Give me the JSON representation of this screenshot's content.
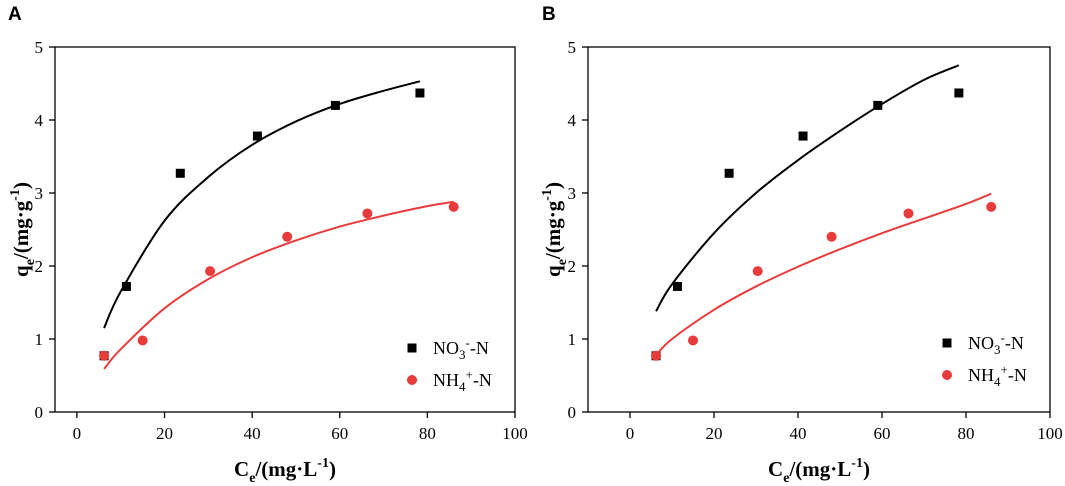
{
  "chart_data": [
    {
      "type": "scatter",
      "panel": "A",
      "title": "",
      "xlabel": "Ce/(mg·L-1)",
      "ylabel": "qe/(mg·g-1)",
      "xlim": [
        -5,
        100
      ],
      "ylim": [
        0,
        5
      ],
      "xticks": [
        0,
        20,
        40,
        60,
        80,
        100
      ],
      "yticks": [
        0,
        1,
        2,
        3,
        4,
        5
      ],
      "legend_position": "bottom-right",
      "series": [
        {
          "name": "NO3--N",
          "marker": "square",
          "color": "#000000",
          "points": [
            [
              6.2,
              0.77
            ],
            [
              11.3,
              1.72
            ],
            [
              23.6,
              3.27
            ],
            [
              41.2,
              3.78
            ],
            [
              59.0,
              4.2
            ],
            [
              78.3,
              4.37
            ]
          ],
          "fit_points": [
            [
              6.2,
              1.15
            ],
            [
              10,
              1.65
            ],
            [
              20,
              2.62
            ],
            [
              30,
              3.22
            ],
            [
              40,
              3.66
            ],
            [
              50,
              3.98
            ],
            [
              60,
              4.22
            ],
            [
              70,
              4.4
            ],
            [
              78.3,
              4.53
            ]
          ]
        },
        {
          "name": "NH4+-N",
          "marker": "circle",
          "color": "#e83c3c",
          "points": [
            [
              6.2,
              0.77
            ],
            [
              15.0,
              0.98
            ],
            [
              30.4,
              1.93
            ],
            [
              48.0,
              2.4
            ],
            [
              66.3,
              2.72
            ],
            [
              86.0,
              2.81
            ]
          ],
          "fit_points": [
            [
              6.2,
              0.59
            ],
            [
              10,
              0.86
            ],
            [
              20,
              1.42
            ],
            [
              30,
              1.82
            ],
            [
              40,
              2.12
            ],
            [
              50,
              2.35
            ],
            [
              60,
              2.54
            ],
            [
              70,
              2.69
            ],
            [
              80,
              2.82
            ],
            [
              86,
              2.88
            ]
          ]
        }
      ]
    },
    {
      "type": "scatter",
      "panel": "B",
      "title": "",
      "xlabel": "Ce/(mg·L-1)",
      "ylabel": "qe/(mg·g-1)",
      "xlim": [
        -10,
        100
      ],
      "ylim": [
        0,
        5
      ],
      "xticks": [
        0,
        20,
        40,
        60,
        80,
        100
      ],
      "yticks": [
        0,
        1,
        2,
        3,
        4,
        5
      ],
      "legend_position": "bottom-right",
      "series": [
        {
          "name": "NO3--N",
          "marker": "square",
          "color": "#000000",
          "points": [
            [
              6.2,
              0.77
            ],
            [
              11.3,
              1.72
            ],
            [
              23.6,
              3.27
            ],
            [
              41.2,
              3.78
            ],
            [
              59.0,
              4.2
            ],
            [
              78.3,
              4.37
            ]
          ],
          "fit_points": [
            [
              6.2,
              1.38
            ],
            [
              10,
              1.75
            ],
            [
              20,
              2.45
            ],
            [
              30,
              3.0
            ],
            [
              40,
              3.45
            ],
            [
              50,
              3.85
            ],
            [
              60,
              4.22
            ],
            [
              70,
              4.55
            ],
            [
              78.3,
              4.75
            ]
          ]
        },
        {
          "name": "NH4+-N",
          "marker": "circle",
          "color": "#e83c3c",
          "points": [
            [
              6.2,
              0.77
            ],
            [
              15.0,
              0.98
            ],
            [
              30.4,
              1.93
            ],
            [
              48.0,
              2.4
            ],
            [
              66.3,
              2.72
            ],
            [
              86.0,
              2.81
            ]
          ],
          "fit_points": [
            [
              6.2,
              0.78
            ],
            [
              10,
              1.0
            ],
            [
              20,
              1.4
            ],
            [
              30,
              1.72
            ],
            [
              40,
              1.99
            ],
            [
              50,
              2.23
            ],
            [
              60,
              2.45
            ],
            [
              70,
              2.65
            ],
            [
              80,
              2.85
            ],
            [
              86,
              2.99
            ]
          ]
        }
      ]
    }
  ],
  "panels": [
    {
      "letter": "A",
      "xlabel": {
        "main": "C",
        "sub": "e",
        "unit": "/(mg·L",
        "sup": "-1",
        "close": ")"
      },
      "ylabel": {
        "main": "q",
        "sub": "e",
        "unit": "/(mg·g",
        "sup": "-1",
        "close": ")"
      },
      "legend": [
        {
          "main": "NO",
          "sub": "3",
          "sup": "-",
          "suffix": "-N"
        },
        {
          "main": "NH",
          "sub": "4",
          "sup": "+",
          "suffix": "-N"
        }
      ]
    },
    {
      "letter": "B",
      "xlabel": {
        "main": "C",
        "sub": "e",
        "unit": "/(mg·L",
        "sup": "-1",
        "close": ")"
      },
      "ylabel": {
        "main": "q",
        "sub": "e",
        "unit": "/(mg·g",
        "sup": "-1",
        "close": ")"
      },
      "legend": [
        {
          "main": "NO",
          "sub": "3",
          "sup": "-",
          "suffix": "-N"
        },
        {
          "main": "NH",
          "sub": "4",
          "sup": "+",
          "suffix": "-N"
        }
      ]
    }
  ]
}
